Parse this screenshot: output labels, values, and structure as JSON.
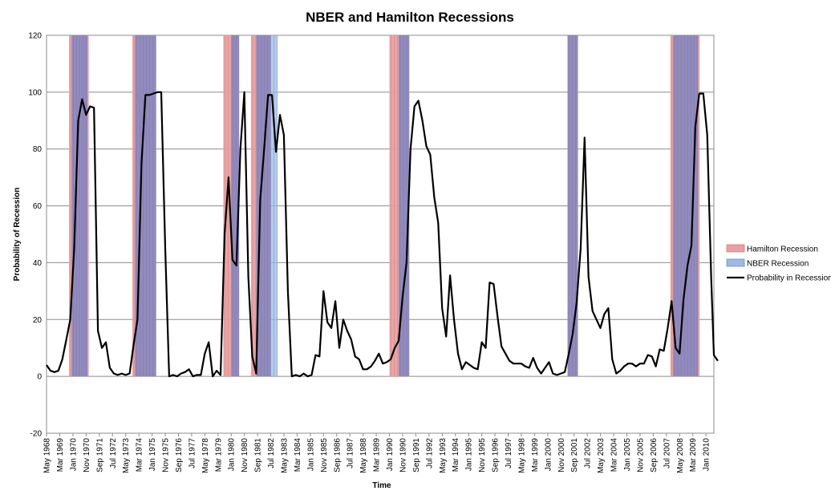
{
  "chart_data": {
    "type": "line",
    "title": "NBER and  Hamilton Recessions",
    "xlabel": "Time",
    "ylabel": "Probability of Recession",
    "ylim": [
      -20,
      120
    ],
    "yticks": [
      -20,
      0,
      20,
      40,
      60,
      80,
      100,
      120
    ],
    "grid": true,
    "legend_position": "right",
    "x_ticks": [
      "May 1968",
      "Mar 1969",
      "Jan 1970",
      "Nov 1970",
      "Sep 1971",
      "Jul 1972",
      "May 1973",
      "Mar 1974",
      "Jan 1975",
      "Nov 1975",
      "Sep 1976",
      "Jul 1977",
      "May 1978",
      "Mar 1979",
      "Jan 1980",
      "Nov 1980",
      "Sep 1981",
      "Jul 1982",
      "May 1983",
      "Mar 1984",
      "Jan 1985",
      "Nov 1985",
      "Sep 1986",
      "Jul 1987",
      "May 1988",
      "Mar 1989",
      "Jan 1990",
      "Nov 1990",
      "Sep 1991",
      "Jul 1992",
      "May 1993",
      "Mar 1994",
      "Jan 1995",
      "Nov 1995",
      "Sep 1996",
      "Jul 1997",
      "May 1998",
      "Mar 1999",
      "Jan 2000",
      "Nov 2000",
      "Sep 2001",
      "Jul 2002",
      "May 2003",
      "Mar 2004",
      "Jan 2005",
      "Nov 2005",
      "Sep 2006",
      "Jul 2007",
      "May 2008",
      "Mar 2009",
      "Jan 2010"
    ],
    "x_range": [
      1968.33,
      2010.5
    ],
    "series": [
      {
        "name": "Hamilton Recession",
        "type": "band",
        "color": "#e8a0a0",
        "periods": [
          [
            1969.75,
            1971.0
          ],
          [
            1973.75,
            1975.25
          ],
          [
            1979.5,
            1980.5
          ],
          [
            1981.25,
            1982.5
          ],
          [
            1990.0,
            1991.25
          ],
          [
            2001.25,
            2001.9
          ],
          [
            2007.75,
            2009.6
          ]
        ]
      },
      {
        "name": "NBER Recession",
        "type": "band",
        "color": "#9db9e4",
        "periods": [
          [
            1969.92,
            1970.92
          ],
          [
            1973.92,
            1975.25
          ],
          [
            1980.0,
            1980.5
          ],
          [
            1981.58,
            1982.92
          ],
          [
            1990.58,
            1991.25
          ],
          [
            2001.25,
            2001.92
          ],
          [
            2007.92,
            2009.5
          ]
        ]
      },
      {
        "name": "Probability in Recession",
        "type": "line",
        "color": "#000000",
        "points": [
          [
            1968.33,
            4
          ],
          [
            1968.58,
            2
          ],
          [
            1968.83,
            1.5
          ],
          [
            1969.08,
            2
          ],
          [
            1969.33,
            6
          ],
          [
            1969.58,
            13
          ],
          [
            1969.83,
            20
          ],
          [
            1970.08,
            45
          ],
          [
            1970.33,
            90
          ],
          [
            1970.58,
            97.5
          ],
          [
            1970.83,
            92
          ],
          [
            1971.08,
            95
          ],
          [
            1971.33,
            94.5
          ],
          [
            1971.58,
            16
          ],
          [
            1971.83,
            10
          ],
          [
            1972.08,
            12
          ],
          [
            1972.33,
            3
          ],
          [
            1972.58,
            1
          ],
          [
            1972.83,
            0.5
          ],
          [
            1973.08,
            1
          ],
          [
            1973.33,
            0.5
          ],
          [
            1973.58,
            1
          ],
          [
            1973.83,
            11
          ],
          [
            1974.08,
            20
          ],
          [
            1974.33,
            75
          ],
          [
            1974.58,
            99
          ],
          [
            1974.83,
            99
          ],
          [
            1975.08,
            99.5
          ],
          [
            1975.33,
            100
          ],
          [
            1975.58,
            100
          ],
          [
            1975.83,
            45
          ],
          [
            1976.08,
            0
          ],
          [
            1976.33,
            0.5
          ],
          [
            1976.58,
            0
          ],
          [
            1976.83,
            1
          ],
          [
            1977.08,
            1.5
          ],
          [
            1977.33,
            2.5
          ],
          [
            1977.58,
            0
          ],
          [
            1977.83,
            0.5
          ],
          [
            1978.08,
            0.5
          ],
          [
            1978.33,
            8
          ],
          [
            1978.58,
            12
          ],
          [
            1978.83,
            0
          ],
          [
            1979.08,
            2
          ],
          [
            1979.33,
            0.5
          ],
          [
            1979.58,
            50
          ],
          [
            1979.83,
            70
          ],
          [
            1980.08,
            41
          ],
          [
            1980.33,
            39
          ],
          [
            1980.58,
            80
          ],
          [
            1980.83,
            100
          ],
          [
            1981.08,
            35
          ],
          [
            1981.33,
            7
          ],
          [
            1981.58,
            1
          ],
          [
            1981.83,
            62
          ],
          [
            1982.08,
            80
          ],
          [
            1982.33,
            99
          ],
          [
            1982.58,
            99
          ],
          [
            1982.83,
            79
          ],
          [
            1983.08,
            92
          ],
          [
            1983.33,
            85
          ],
          [
            1983.58,
            30
          ],
          [
            1983.83,
            0
          ],
          [
            1984.08,
            0.5
          ],
          [
            1984.33,
            0
          ],
          [
            1984.58,
            1
          ],
          [
            1984.83,
            0
          ],
          [
            1985.08,
            0.5
          ],
          [
            1985.33,
            7.5
          ],
          [
            1985.58,
            7
          ],
          [
            1985.83,
            30
          ],
          [
            1986.08,
            19
          ],
          [
            1986.33,
            17
          ],
          [
            1986.58,
            26.5
          ],
          [
            1986.83,
            10
          ],
          [
            1987.08,
            20
          ],
          [
            1987.33,
            16
          ],
          [
            1987.58,
            13
          ],
          [
            1987.83,
            7
          ],
          [
            1988.08,
            6
          ],
          [
            1988.33,
            2.5
          ],
          [
            1988.58,
            2.5
          ],
          [
            1988.83,
            3.5
          ],
          [
            1989.08,
            5.5
          ],
          [
            1989.33,
            8
          ],
          [
            1989.58,
            4.5
          ],
          [
            1989.83,
            5
          ],
          [
            1990.08,
            6
          ],
          [
            1990.33,
            10
          ],
          [
            1990.58,
            12.5
          ],
          [
            1990.83,
            28
          ],
          [
            1991.08,
            40
          ],
          [
            1991.33,
            80
          ],
          [
            1991.58,
            95
          ],
          [
            1991.83,
            97
          ],
          [
            1992.08,
            90
          ],
          [
            1992.33,
            81
          ],
          [
            1992.58,
            78
          ],
          [
            1992.83,
            63
          ],
          [
            1993.08,
            54
          ],
          [
            1993.33,
            24
          ],
          [
            1993.58,
            14
          ],
          [
            1993.83,
            35.5
          ],
          [
            1994.08,
            20
          ],
          [
            1994.33,
            8
          ],
          [
            1994.58,
            2.5
          ],
          [
            1994.83,
            5
          ],
          [
            1995.08,
            4
          ],
          [
            1995.33,
            3
          ],
          [
            1995.58,
            2.5
          ],
          [
            1995.83,
            12
          ],
          [
            1996.08,
            10
          ],
          [
            1996.33,
            33
          ],
          [
            1996.58,
            32.5
          ],
          [
            1996.83,
            21
          ],
          [
            1997.08,
            10.5
          ],
          [
            1997.33,
            8
          ],
          [
            1997.58,
            5.5
          ],
          [
            1997.83,
            4.5
          ],
          [
            1998.08,
            4.5
          ],
          [
            1998.33,
            4.5
          ],
          [
            1998.58,
            3.5
          ],
          [
            1998.83,
            3
          ],
          [
            1999.08,
            6.5
          ],
          [
            1999.33,
            3
          ],
          [
            1999.58,
            1
          ],
          [
            1999.83,
            3
          ],
          [
            2000.08,
            5
          ],
          [
            2000.33,
            1
          ],
          [
            2000.58,
            0.5
          ],
          [
            2000.83,
            1
          ],
          [
            2001.08,
            1.5
          ],
          [
            2001.33,
            8
          ],
          [
            2001.58,
            15
          ],
          [
            2001.83,
            26
          ],
          [
            2002.08,
            45
          ],
          [
            2002.33,
            84
          ],
          [
            2002.58,
            35
          ],
          [
            2002.83,
            23
          ],
          [
            2003.08,
            20
          ],
          [
            2003.33,
            17
          ],
          [
            2003.58,
            22
          ],
          [
            2003.83,
            24
          ],
          [
            2004.08,
            6
          ],
          [
            2004.33,
            1
          ],
          [
            2004.58,
            2
          ],
          [
            2004.83,
            3.5
          ],
          [
            2005.08,
            4.5
          ],
          [
            2005.33,
            4.5
          ],
          [
            2005.58,
            3.5
          ],
          [
            2005.83,
            4.5
          ],
          [
            2006.08,
            4.5
          ],
          [
            2006.33,
            7.5
          ],
          [
            2006.58,
            7
          ],
          [
            2006.83,
            3.5
          ],
          [
            2007.08,
            9.5
          ],
          [
            2007.33,
            9
          ],
          [
            2007.58,
            17
          ],
          [
            2007.83,
            26.5
          ],
          [
            2008.08,
            10
          ],
          [
            2008.33,
            8
          ],
          [
            2008.58,
            27
          ],
          [
            2008.83,
            39
          ],
          [
            2009.08,
            46
          ],
          [
            2009.33,
            88
          ],
          [
            2009.58,
            99.5
          ],
          [
            2009.83,
            99.5
          ],
          [
            2010.08,
            85
          ],
          [
            2010.33,
            35
          ],
          [
            2010.5,
            7.5
          ],
          [
            2010.75,
            5.5
          ]
        ]
      }
    ]
  }
}
